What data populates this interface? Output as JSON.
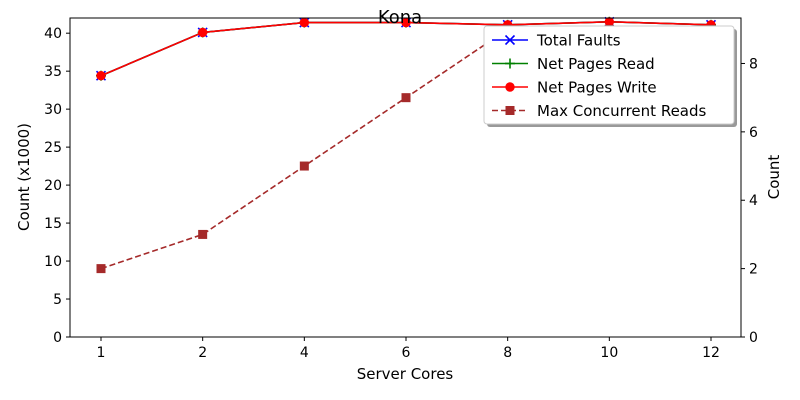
{
  "chart_data": {
    "type": "line",
    "title": "Kona",
    "xlabel": "Server Cores",
    "ylabel_left": "Count (x1000)",
    "ylabel_right": "Count",
    "categories": [
      "1",
      "2",
      "4",
      "6",
      "8",
      "10",
      "12"
    ],
    "ylim_left": [
      0,
      42
    ],
    "ylim_right": [
      0,
      9.33
    ],
    "yticks_left": [
      0,
      5,
      10,
      15,
      20,
      25,
      30,
      35,
      40
    ],
    "yticks_right": [
      0,
      2,
      4,
      6,
      8
    ],
    "grid": false,
    "legend_position": "top-right",
    "series": [
      {
        "name": "Total Faults",
        "axis": "left",
        "color": "#0000ff",
        "marker": "x",
        "dashed": false,
        "values": [
          34.4,
          40.1,
          41.4,
          41.4,
          41.1,
          41.5,
          41.1
        ]
      },
      {
        "name": "Net Pages Read",
        "axis": "left",
        "color": "#008000",
        "marker": "+",
        "dashed": false,
        "values": [
          34.4,
          40.1,
          41.4,
          41.4,
          41.1,
          41.5,
          41.1
        ]
      },
      {
        "name": "Net Pages Write",
        "axis": "left",
        "color": "#ff0000",
        "marker": "o",
        "dashed": false,
        "values": [
          34.4,
          40.1,
          41.4,
          41.4,
          41.1,
          41.5,
          41.1
        ]
      },
      {
        "name": "Max Concurrent Reads",
        "axis": "right",
        "color": "#a52a2a",
        "marker": "s",
        "dashed": true,
        "values": [
          2,
          3,
          5,
          7,
          9,
          9,
          9
        ]
      }
    ]
  }
}
